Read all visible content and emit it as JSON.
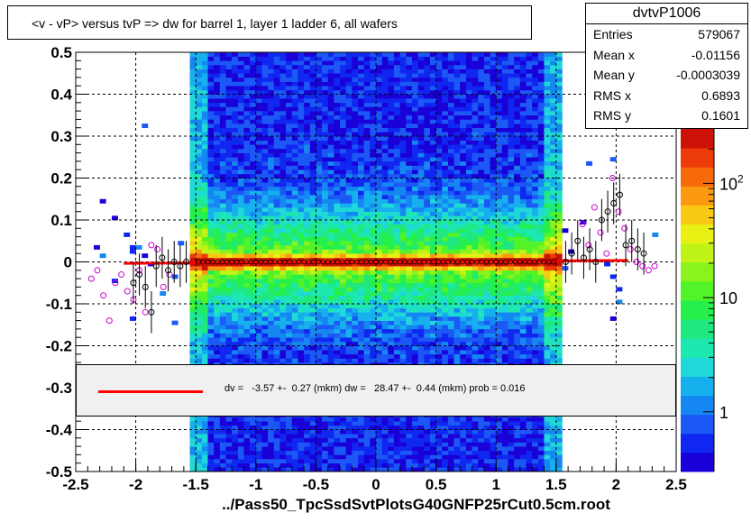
{
  "title": "<v - vP>       versus  tvP =>  dw for barrel 1, layer 1 ladder 6, all wafers",
  "stats": {
    "name": "dvtvP1006",
    "rows": [
      {
        "key": "Entries",
        "value": "579067"
      },
      {
        "key": "Mean x",
        "value": "-0.01156"
      },
      {
        "key": "Mean y",
        "value": "-0.0003039"
      },
      {
        "key": "RMS x",
        "value": "0.6893"
      },
      {
        "key": "RMS y",
        "value": "0.1601"
      }
    ]
  },
  "fit_text": "dv =   -3.57 +-  0.27 (mkm) dw =   28.47 +-  0.44 (mkm) prob = 0.016",
  "footer": "../Pass50_TpcSsdSvtPlotsG40GNFP25rCut0.5cm.root",
  "colors": {
    "fit_line": "#ff0000",
    "profile_open": "#cc00cc",
    "profile_black": "#000000",
    "background": "#ffffff",
    "fit_box": "#f0f0f0"
  },
  "chart_data": {
    "type": "heatmap",
    "xlim": [
      -2.5,
      2.5
    ],
    "ylim": [
      -0.5,
      0.5
    ],
    "x_ticks": [
      -2.5,
      -2,
      -1.5,
      -1,
      -0.5,
      0,
      0.5,
      1,
      1.5,
      2,
      2.5
    ],
    "x_tick_labels": [
      "-2.5",
      "-2",
      "-1.5",
      "-1",
      "-0.5",
      "0",
      "0.5",
      "1",
      "1.5",
      "2",
      "2.5"
    ],
    "y_ticks": [
      -0.5,
      -0.4,
      -0.3,
      -0.2,
      -0.1,
      0,
      0.1,
      0.2,
      0.3,
      0.4,
      0.5
    ],
    "y_tick_labels": [
      "-0.5",
      "-0.4",
      "-0.3",
      "-0.2",
      "-0.1",
      "0",
      "0.1",
      "0.2",
      "0.3",
      "0.4",
      "0.5"
    ],
    "grid": true,
    "dense_band_x": [
      -1.5,
      1.5
    ],
    "colorbar": {
      "scale": "log",
      "range": [
        0.3,
        300
      ],
      "ticks": [
        1,
        10,
        100
      ],
      "tick_labels": [
        "1",
        "10",
        "10^2"
      ]
    },
    "fit_line": {
      "x": [
        -2.1,
        2.1
      ],
      "y": [
        -0.0036,
        0.0036
      ]
    },
    "profile_black": {
      "x": [
        -2.02,
        -1.97,
        -1.92,
        -1.87,
        -1.83,
        -1.78,
        -1.73,
        -1.68,
        -1.63,
        -1.58,
        1.58,
        1.63,
        1.68,
        1.73,
        1.78,
        1.83,
        1.88,
        1.93,
        1.98,
        2.03,
        2.08,
        2.13,
        2.18,
        2.23
      ],
      "y": [
        -0.05,
        -0.03,
        -0.06,
        -0.12,
        -0.01,
        0.01,
        -0.02,
        0.0,
        -0.01,
        0.0,
        0.0,
        0.02,
        0.05,
        0.01,
        0.03,
        0.0,
        0.1,
        0.12,
        0.14,
        0.16,
        0.04,
        0.05,
        0.03,
        0.02
      ]
    },
    "profile_open": {
      "x": [
        -2.37,
        -2.32,
        -2.27,
        -2.22,
        -2.17,
        -2.12,
        -2.07,
        -2.02,
        -1.97,
        -1.92,
        -1.87,
        -1.82,
        -1.77,
        -1.72,
        1.72,
        1.77,
        1.82,
        1.87,
        1.92,
        1.97,
        2.02,
        2.07,
        2.12,
        2.17,
        2.22,
        2.27,
        2.32
      ],
      "y": [
        -0.04,
        -0.02,
        -0.08,
        -0.14,
        -0.05,
        -0.03,
        -0.07,
        -0.09,
        -0.02,
        -0.12,
        0.04,
        0.03,
        -0.06,
        -0.03,
        0.09,
        0.04,
        0.13,
        0.07,
        0.02,
        0.2,
        0.12,
        0.08,
        0.03,
        0.0,
        -0.01,
        -0.02,
        -0.01
      ]
    }
  }
}
